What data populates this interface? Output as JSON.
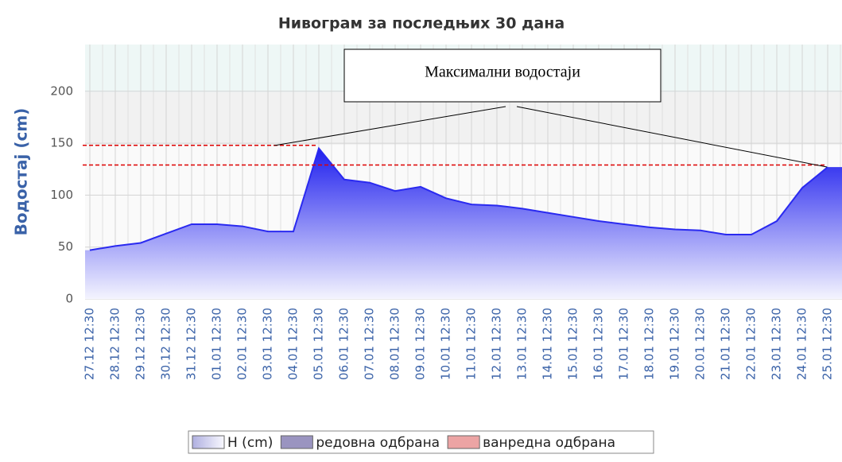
{
  "chart_data": {
    "type": "area",
    "title": "Нивограм за последњих 30 дана",
    "y_label": "Водостај (cm)",
    "categories": [
      "27.12 12:30",
      "28.12 12:30",
      "29.12 12:30",
      "30.12 12:30",
      "31.12 12:30",
      "01.01 12:30",
      "02.01 12:30",
      "03.01 12:30",
      "04.01 12:30",
      "05.01 12:30",
      "06.01 12:30",
      "07.01 12:30",
      "08.01 12:30",
      "09.01 12:30",
      "10.01 12:30",
      "11.01 12:30",
      "12.01 12:30",
      "13.01 12:30",
      "14.01 12:30",
      "15.01 12:30",
      "16.01 12:30",
      "17.01 12:30",
      "18.01 12:30",
      "19.01 12:30",
      "20.01 12:30",
      "21.01 12:30",
      "22.01 12:30",
      "23.01 12:30",
      "24.01 12:30",
      "25.01 12:30"
    ],
    "series": [
      {
        "name": "H (cm)",
        "color": "#2a2af0",
        "values": [
          47,
          51,
          54,
          63,
          72,
          72,
          70,
          65,
          65,
          145,
          115,
          112,
          104,
          108,
          97,
          91,
          90,
          87,
          83,
          79,
          75,
          72,
          69,
          67,
          66,
          62,
          62,
          75,
          107,
          127
        ]
      }
    ],
    "legend_items": [
      {
        "name": "редовна одбрана",
        "color": "#9a94c0"
      },
      {
        "name": "ванредна одбрана",
        "color": "#eca4a4"
      }
    ],
    "ylim": [
      0,
      245
    ],
    "yticks": [
      0,
      50,
      100,
      150,
      200
    ],
    "grid": true,
    "annotation": "Максимални водостаји",
    "reference_lines": [
      148,
      129
    ],
    "reference_color": "#dd0000"
  }
}
